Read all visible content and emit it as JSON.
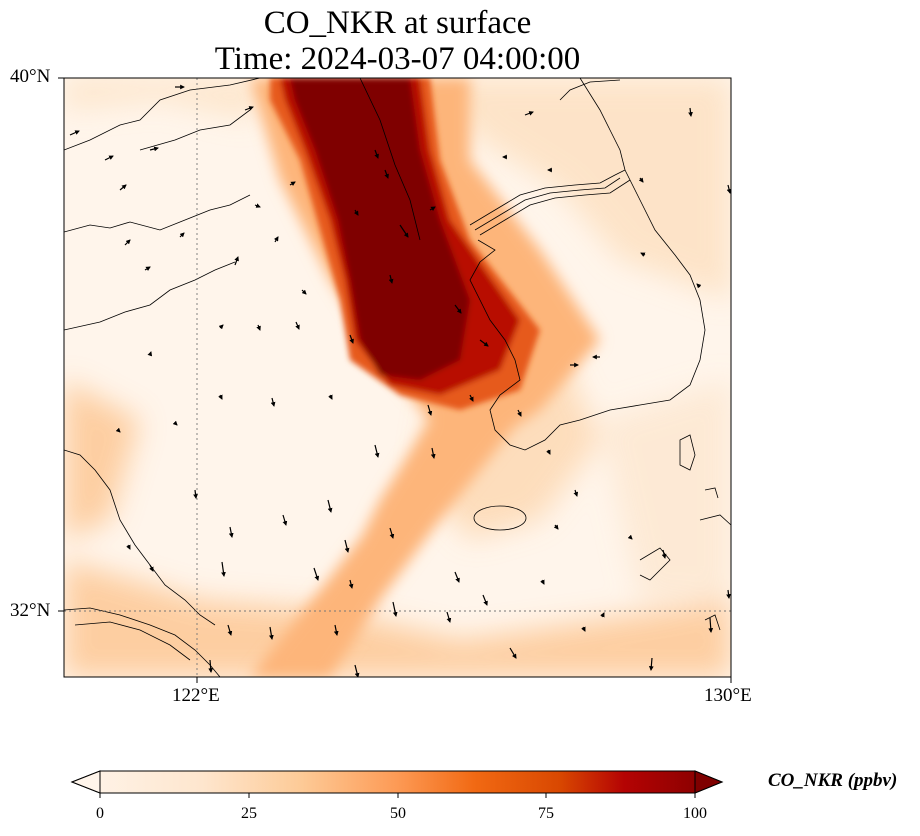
{
  "figure": {
    "title_line1": "CO_NKR at surface",
    "title_line2": "Time: 2024-03-07 04:00:00"
  },
  "axes": {
    "lat_ticks": [
      "40°N",
      "32°N"
    ],
    "lon_ticks": [
      "122°E",
      "130°E"
    ]
  },
  "colorbar": {
    "label": "CO_NKR (ppbv)",
    "ticks": [
      "0",
      "25",
      "50",
      "75",
      "100"
    ],
    "min": 0,
    "max": 100,
    "extend": "both",
    "colormap": [
      "#fff5eb",
      "#fdd4a8",
      "#fd9a55",
      "#e55213",
      "#b40303",
      "#7f0000"
    ]
  },
  "map": {
    "extent_lon": [
      120,
      130
    ],
    "extent_lat": [
      31,
      40
    ],
    "gridlines": "dotted",
    "vectors": "wind arrows",
    "background_color": "#fff5eb",
    "high_color": "#7f0000"
  }
}
